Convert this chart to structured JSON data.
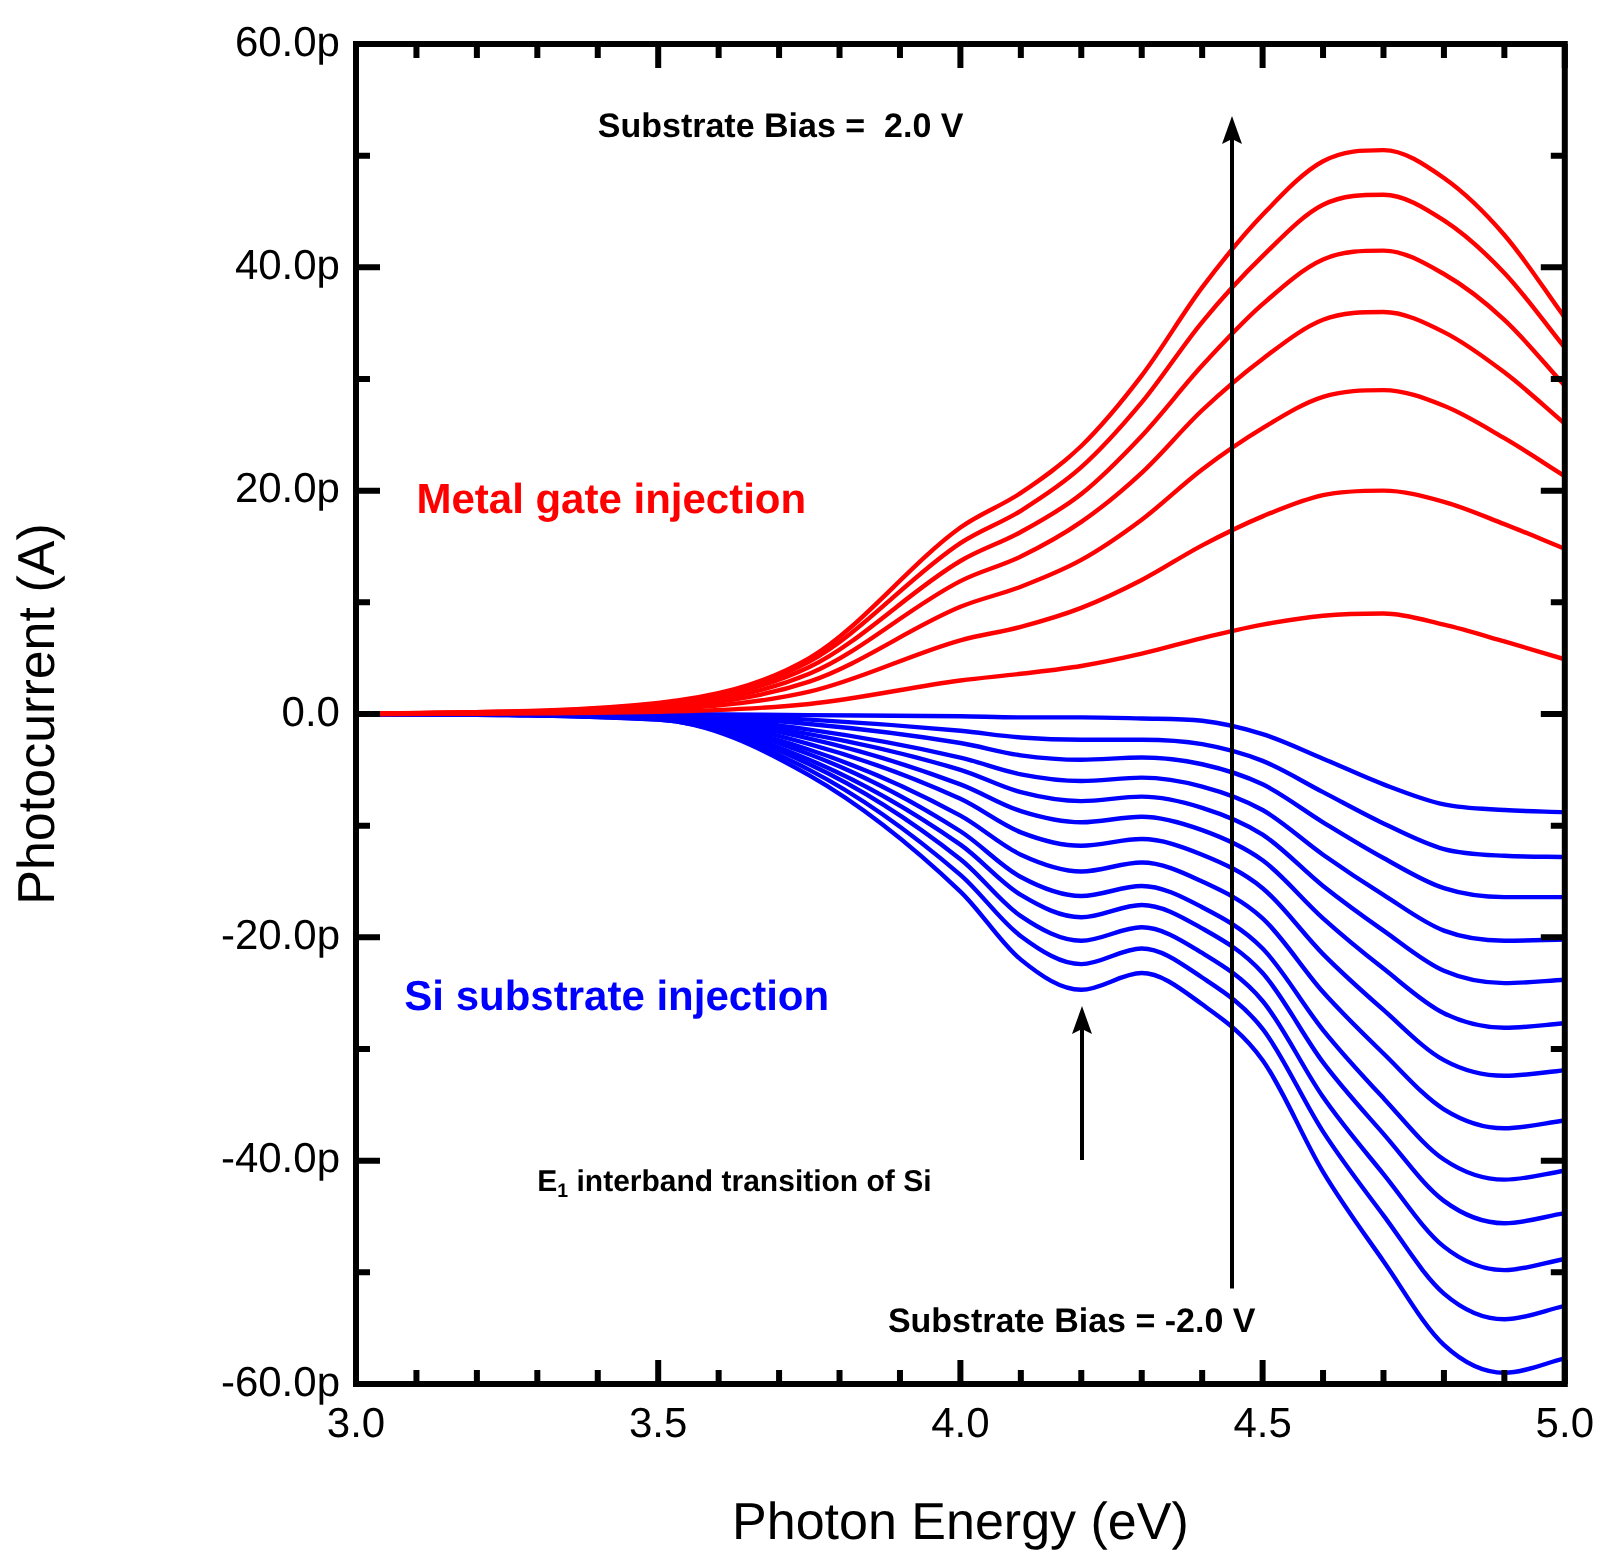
{
  "chart_data": {
    "type": "line",
    "xlabel": "Photon Energy (eV)",
    "ylabel": "Photocurrent (A)",
    "x": [
      3.0,
      3.5,
      3.75,
      4.0,
      4.1,
      4.2,
      4.3,
      4.4,
      4.5,
      4.6,
      4.7,
      4.8,
      4.9,
      5.0
    ],
    "xlim": [
      3.0,
      5.0
    ],
    "xticks": [
      {
        "value": 3.0,
        "label": "3.0"
      },
      {
        "value": 3.1,
        "label": null
      },
      {
        "value": 3.2,
        "label": null
      },
      {
        "value": 3.3,
        "label": null
      },
      {
        "value": 3.4,
        "label": null
      },
      {
        "value": 3.5,
        "label": "3.5"
      },
      {
        "value": 3.6,
        "label": null
      },
      {
        "value": 3.7,
        "label": null
      },
      {
        "value": 3.8,
        "label": null
      },
      {
        "value": 3.9,
        "label": null
      },
      {
        "value": 4.0,
        "label": "4.0"
      },
      {
        "value": 4.1,
        "label": null
      },
      {
        "value": 4.2,
        "label": null
      },
      {
        "value": 4.3,
        "label": null
      },
      {
        "value": 4.4,
        "label": null
      },
      {
        "value": 4.5,
        "label": "4.5"
      },
      {
        "value": 4.6,
        "label": null
      },
      {
        "value": 4.7,
        "label": null
      },
      {
        "value": 4.8,
        "label": null
      },
      {
        "value": 4.9,
        "label": null
      },
      {
        "value": 5.0,
        "label": "5.0"
      }
    ],
    "ylim": [
      -60,
      60
    ],
    "yticks": [
      {
        "value": -60,
        "label": "-60.0p"
      },
      {
        "value": -50,
        "label": null
      },
      {
        "value": -40,
        "label": "-40.0p"
      },
      {
        "value": -30,
        "label": null
      },
      {
        "value": -20,
        "label": "-20.0p"
      },
      {
        "value": -10,
        "label": null
      },
      {
        "value": 0,
        "label": "0.0"
      },
      {
        "value": 10,
        "label": null
      },
      {
        "value": 20,
        "label": "20.0p"
      },
      {
        "value": 30,
        "label": null
      },
      {
        "value": 40,
        "label": "40.0p"
      },
      {
        "value": 50,
        "label": null
      },
      {
        "value": 60,
        "label": "60.0p"
      }
    ],
    "grid": false,
    "legend": false,
    "marker": "none",
    "line_style": "solid",
    "annotations": [
      "Substrate Bias =  2.0 V",
      "Metal gate injection",
      "Si substrate injection",
      "E$_{1}$ interband transition of Si",
      "Substrate Bias = -2.0 V"
    ],
    "series": [
      {
        "color": "#ff0000",
        "values": [
          0,
          1,
          5,
          16.7,
          19.8,
          24,
          30.3,
          38.2,
          44.7,
          49.5,
          50.5,
          48,
          42.9,
          35.5
        ]
      },
      {
        "color": "#ff0000",
        "values": [
          0,
          0.9,
          4.7,
          15.3,
          18.2,
          22.1,
          27.9,
          35.1,
          41,
          45.6,
          46.5,
          44.2,
          39.5,
          32.8
        ]
      },
      {
        "color": "#ff0000",
        "values": [
          0,
          0.8,
          4.2,
          13.7,
          16.3,
          19.7,
          24.9,
          31.2,
          36.7,
          40.7,
          41.5,
          39.4,
          35.3,
          29.4
        ]
      },
      {
        "color": "#ff0000",
        "values": [
          0,
          0.7,
          3.6,
          11.9,
          14.1,
          17.2,
          21.6,
          27.2,
          31.8,
          35.3,
          36,
          34.2,
          30.6,
          26
        ]
      },
      {
        "color": "#ff0000",
        "values": [
          0,
          0.6,
          2.9,
          9.6,
          11.4,
          13.8,
          17.4,
          21.9,
          25.6,
          28.4,
          29,
          27.6,
          24.7,
          21.3
        ]
      },
      {
        "color": "#ff0000",
        "values": [
          0,
          0.4,
          2,
          6.6,
          7.8,
          9.5,
          12,
          15.1,
          17.7,
          19.6,
          20,
          19,
          17,
          14.8
        ]
      },
      {
        "color": "#ff0000",
        "values": [
          0,
          0.2,
          0.9,
          3,
          3.6,
          4.3,
          5.4,
          6.8,
          8,
          8.8,
          9,
          8,
          6.5,
          4.9
        ]
      },
      {
        "color": "#0000ff",
        "values": [
          0,
          0,
          -0.1,
          -0.2,
          -0.3,
          -0.3,
          -0.4,
          -0.6,
          -1.8,
          -4,
          -6.3,
          -8.1,
          -8.6,
          -8.8
        ]
      },
      {
        "color": "#0000ff",
        "values": [
          0,
          0,
          -0.5,
          -1.5,
          -2.1,
          -2.3,
          -2.3,
          -2.7,
          -4.2,
          -7,
          -9.8,
          -12.1,
          -12.7,
          -12.8
        ]
      },
      {
        "color": "#0000ff",
        "values": [
          0,
          -0.1,
          -0.9,
          -2.6,
          -3.7,
          -4.1,
          -3.9,
          -4.5,
          -6.3,
          -9.7,
          -12.9,
          -15.6,
          -16.4,
          -16.4
        ]
      },
      {
        "color": "#0000ff",
        "values": [
          0,
          -0.1,
          -1.4,
          -3.9,
          -5.4,
          -6,
          -5.7,
          -6.5,
          -8.6,
          -12.6,
          -16.2,
          -19.4,
          -20.3,
          -20.2
        ]
      },
      {
        "color": "#0000ff",
        "values": [
          0,
          -0.2,
          -1.8,
          -5,
          -7,
          -7.8,
          -7.4,
          -8.4,
          -10.8,
          -15.4,
          -19.4,
          -23,
          -24.1,
          -23.8
        ]
      },
      {
        "color": "#0000ff",
        "values": [
          0,
          -0.2,
          -2.2,
          -6.3,
          -8.7,
          -9.7,
          -9.2,
          -10.4,
          -13.1,
          -18.3,
          -22.8,
          -26.8,
          -28.1,
          -27.7
        ]
      },
      {
        "color": "#0000ff",
        "values": [
          0,
          -0.2,
          -2.7,
          -7.6,
          -10.6,
          -11.8,
          -11.2,
          -12.6,
          -15.6,
          -21.5,
          -26.5,
          -31,
          -32.4,
          -31.9
        ]
      },
      {
        "color": "#0000ff",
        "values": [
          0,
          -0.3,
          -3.2,
          -9.1,
          -12.6,
          -14.1,
          -13.3,
          -15,
          -18.3,
          -24.9,
          -30.4,
          -35.4,
          -37.1,
          -36.4
        ]
      },
      {
        "color": "#0000ff",
        "values": [
          0,
          -0.3,
          -3.6,
          -10.5,
          -14.6,
          -16.3,
          -15.4,
          -17.3,
          -21,
          -28.3,
          -34.4,
          -39.9,
          -41.7,
          -40.9
        ]
      },
      {
        "color": "#0000ff",
        "values": [
          0,
          -0.4,
          -4.1,
          -11.7,
          -16.2,
          -18.2,
          -17.1,
          -19.2,
          -23.2,
          -31.2,
          -37.6,
          -43.6,
          -45.6,
          -44.7
        ]
      },
      {
        "color": "#0000ff",
        "values": [
          0,
          -0.4,
          -4.5,
          -13,
          -18.1,
          -20.3,
          -19.1,
          -21.4,
          -25.7,
          -34.3,
          -41.2,
          -47.7,
          -49.8,
          -48.8
        ]
      },
      {
        "color": "#0000ff",
        "values": [
          0,
          -0.5,
          -5,
          -14.4,
          -19.9,
          -22.4,
          -21,
          -23.6,
          -28.2,
          -37.4,
          -44.9,
          -51.9,
          -54.2,
          -53
        ]
      },
      {
        "color": "#0000ff",
        "values": [
          0,
          -0.5,
          -5.5,
          -15.9,
          -22,
          -24.7,
          -23.2,
          -26,
          -31,
          -41,
          -49,
          -56.5,
          -59,
          -57.7
        ]
      }
    ]
  }
}
